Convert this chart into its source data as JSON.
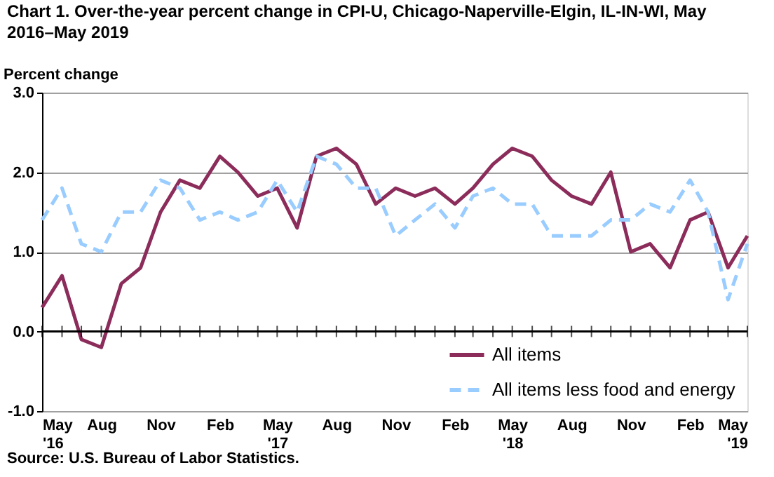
{
  "chart_data": {
    "type": "line",
    "title": "Chart 1. Over-the-year percent change in CPI-U, Chicago-Naperville-Elgin, IL-IN-WI, May 2016–May 2019",
    "ylabel": "Percent change",
    "x": [
      "2016-05",
      "2016-06",
      "2016-07",
      "2016-08",
      "2016-09",
      "2016-10",
      "2016-11",
      "2016-12",
      "2017-01",
      "2017-02",
      "2017-03",
      "2017-04",
      "2017-05",
      "2017-06",
      "2017-07",
      "2017-08",
      "2017-09",
      "2017-10",
      "2017-11",
      "2017-12",
      "2018-01",
      "2018-02",
      "2018-03",
      "2018-04",
      "2018-05",
      "2018-06",
      "2018-07",
      "2018-08",
      "2018-09",
      "2018-10",
      "2018-11",
      "2018-12",
      "2019-01",
      "2019-02",
      "2019-03",
      "2019-04",
      "2019-05"
    ],
    "series": [
      {
        "name": "All items",
        "color": "#8b2c5a",
        "line_style": "solid",
        "values": [
          0.3,
          0.7,
          -0.1,
          -0.2,
          0.6,
          0.8,
          1.5,
          1.9,
          1.8,
          2.2,
          2.0,
          1.7,
          1.8,
          1.3,
          2.2,
          2.3,
          2.1,
          1.6,
          1.8,
          1.7,
          1.8,
          1.6,
          1.8,
          2.1,
          2.3,
          2.2,
          1.9,
          1.7,
          1.6,
          2.0,
          1.0,
          1.1,
          0.8,
          1.4,
          1.5,
          0.8,
          1.2
        ]
      },
      {
        "name": "All items less food and energy",
        "color": "#99ccff",
        "line_style": "dashed",
        "values": [
          1.4,
          1.8,
          1.1,
          1.0,
          1.5,
          1.5,
          1.9,
          1.8,
          1.4,
          1.5,
          1.4,
          1.5,
          1.9,
          1.5,
          2.2,
          2.1,
          1.8,
          1.8,
          1.2,
          1.4,
          1.6,
          1.3,
          1.7,
          1.8,
          1.6,
          1.6,
          1.2,
          1.2,
          1.2,
          1.4,
          1.4,
          1.6,
          1.5,
          1.9,
          1.5,
          0.4,
          1.1
        ]
      }
    ],
    "xlim": [
      "2016-05",
      "2019-05"
    ],
    "xticks": [
      {
        "value": "2016-05",
        "label": "May\n'16"
      },
      {
        "value": "2016-08",
        "label": "Aug"
      },
      {
        "value": "2016-11",
        "label": "Nov"
      },
      {
        "value": "2017-02",
        "label": "Feb"
      },
      {
        "value": "2017-05",
        "label": "May\n'17"
      },
      {
        "value": "2017-08",
        "label": "Aug"
      },
      {
        "value": "2017-11",
        "label": "Nov"
      },
      {
        "value": "2018-02",
        "label": "Feb"
      },
      {
        "value": "2018-05",
        "label": "May\n'18"
      },
      {
        "value": "2018-08",
        "label": "Aug"
      },
      {
        "value": "2018-11",
        "label": "Nov"
      },
      {
        "value": "2019-02",
        "label": "Feb"
      },
      {
        "value": "2019-05",
        "label": "May\n'19"
      }
    ],
    "ylim": [
      -1.0,
      3.0
    ],
    "yticks": [
      {
        "value": -1.0,
        "label": "-1.0"
      },
      {
        "value": 0.0,
        "label": "0.0"
      },
      {
        "value": 1.0,
        "label": "1.0"
      },
      {
        "value": 2.0,
        "label": "2.0"
      },
      {
        "value": 3.0,
        "label": "3.0"
      }
    ],
    "grid": "y",
    "legend": "bottom right",
    "annotations": [
      "Source: U.S. Bureau of Labor Statistics."
    ]
  }
}
